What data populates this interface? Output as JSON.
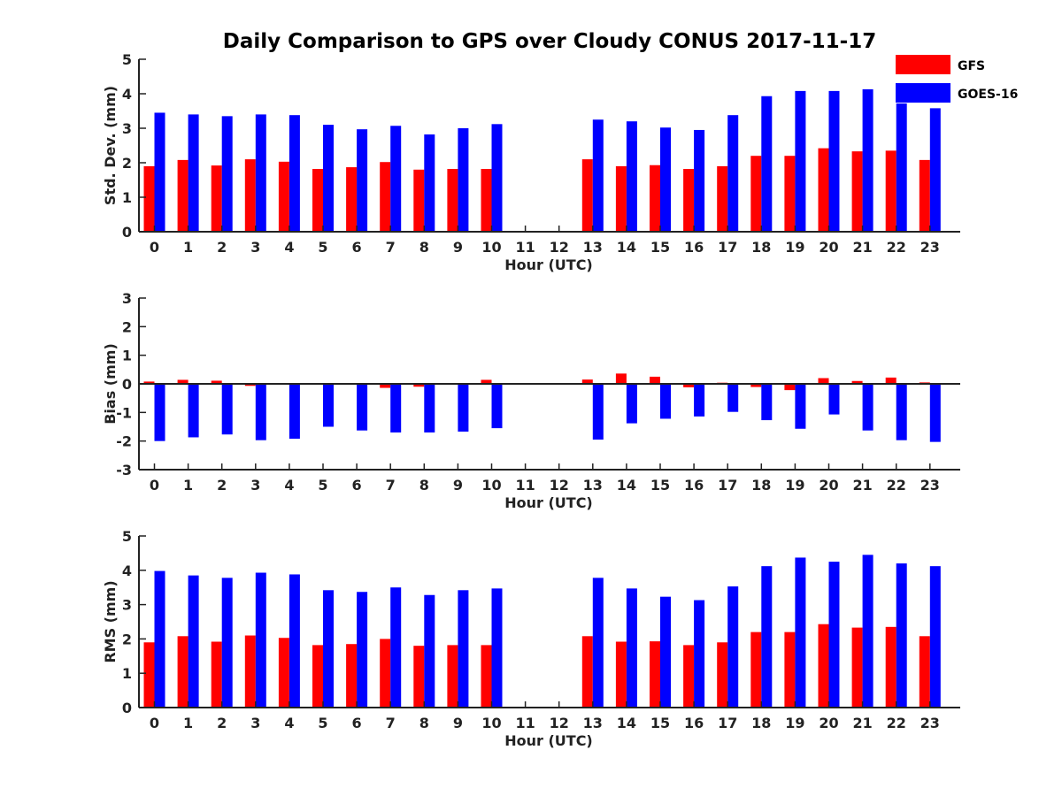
{
  "title": "Daily Comparison to GPS over Cloudy CONUS 2017-11-17",
  "legend": [
    {
      "name": "GFS",
      "color": "#ff0000"
    },
    {
      "name": "GOES-16",
      "color": "#0000ff"
    }
  ],
  "chart_data": [
    {
      "type": "bar",
      "title": "Daily Comparison to GPS over Cloudy CONUS 2017-11-17",
      "xlabel": "Hour (UTC)",
      "ylabel": "Std. Dev. (mm)",
      "ylim": [
        0,
        5
      ],
      "yticks": [
        0,
        1,
        2,
        3,
        4,
        5
      ],
      "categories": [
        "0",
        "1",
        "2",
        "3",
        "4",
        "5",
        "6",
        "7",
        "8",
        "9",
        "10",
        "11",
        "12",
        "13",
        "14",
        "15",
        "16",
        "17",
        "18",
        "19",
        "20",
        "21",
        "22",
        "23"
      ],
      "grid": false,
      "legend_position": "top-right",
      "series": [
        {
          "name": "GFS",
          "color": "#ff0000",
          "values": [
            1.9,
            2.08,
            1.92,
            2.1,
            2.03,
            1.82,
            1.87,
            2.02,
            1.8,
            1.82,
            1.82,
            null,
            null,
            2.1,
            1.9,
            1.93,
            1.82,
            1.9,
            2.2,
            2.2,
            2.42,
            2.33,
            2.35,
            2.08
          ]
        },
        {
          "name": "GOES-16",
          "color": "#0000ff",
          "values": [
            3.45,
            3.4,
            3.35,
            3.4,
            3.38,
            3.1,
            2.97,
            3.07,
            2.82,
            3.0,
            3.12,
            null,
            null,
            3.25,
            3.2,
            3.02,
            2.95,
            3.38,
            3.93,
            4.08,
            4.08,
            4.13,
            3.72,
            3.58
          ]
        }
      ]
    },
    {
      "type": "bar",
      "xlabel": "Hour (UTC)",
      "ylabel": "Bias (mm)",
      "ylim": [
        -3,
        3
      ],
      "yticks": [
        -3,
        -2,
        -1,
        0,
        1,
        2,
        3
      ],
      "categories": [
        "0",
        "1",
        "2",
        "3",
        "4",
        "5",
        "6",
        "7",
        "8",
        "9",
        "10",
        "11",
        "12",
        "13",
        "14",
        "15",
        "16",
        "17",
        "18",
        "19",
        "20",
        "21",
        "22",
        "23"
      ],
      "grid": false,
      "zero_line": true,
      "series": [
        {
          "name": "GFS",
          "color": "#ff0000",
          "values": [
            0.08,
            0.14,
            0.11,
            -0.07,
            -0.03,
            0.02,
            0.02,
            -0.14,
            -0.1,
            -0.01,
            0.14,
            null,
            null,
            0.15,
            0.36,
            0.25,
            -0.12,
            0.04,
            -0.11,
            -0.22,
            0.2,
            0.1,
            0.22,
            0.05
          ]
        },
        {
          "name": "GOES-16",
          "color": "#0000ff",
          "values": [
            -2.0,
            -1.87,
            -1.77,
            -1.97,
            -1.92,
            -1.5,
            -1.63,
            -1.7,
            -1.7,
            -1.67,
            -1.55,
            null,
            null,
            -1.95,
            -1.38,
            -1.22,
            -1.14,
            -0.98,
            -1.27,
            -1.57,
            -1.07,
            -1.63,
            -1.97,
            -2.03
          ]
        }
      ]
    },
    {
      "type": "bar",
      "xlabel": "Hour (UTC)",
      "ylabel": "RMS (mm)",
      "ylim": [
        0,
        5
      ],
      "yticks": [
        0,
        1,
        2,
        3,
        4,
        5
      ],
      "categories": [
        "0",
        "1",
        "2",
        "3",
        "4",
        "5",
        "6",
        "7",
        "8",
        "9",
        "10",
        "11",
        "12",
        "13",
        "14",
        "15",
        "16",
        "17",
        "18",
        "19",
        "20",
        "21",
        "22",
        "23"
      ],
      "grid": false,
      "series": [
        {
          "name": "GFS",
          "color": "#ff0000",
          "values": [
            1.9,
            2.08,
            1.92,
            2.1,
            2.03,
            1.82,
            1.85,
            2.0,
            1.8,
            1.82,
            1.82,
            null,
            null,
            2.08,
            1.92,
            1.93,
            1.82,
            1.9,
            2.2,
            2.2,
            2.43,
            2.33,
            2.35,
            2.08
          ]
        },
        {
          "name": "GOES-16",
          "color": "#0000ff",
          "values": [
            3.98,
            3.85,
            3.78,
            3.93,
            3.88,
            3.42,
            3.37,
            3.5,
            3.28,
            3.42,
            3.47,
            null,
            null,
            3.78,
            3.47,
            3.23,
            3.13,
            3.53,
            4.12,
            4.37,
            4.25,
            4.45,
            4.2,
            4.12
          ]
        }
      ]
    }
  ]
}
